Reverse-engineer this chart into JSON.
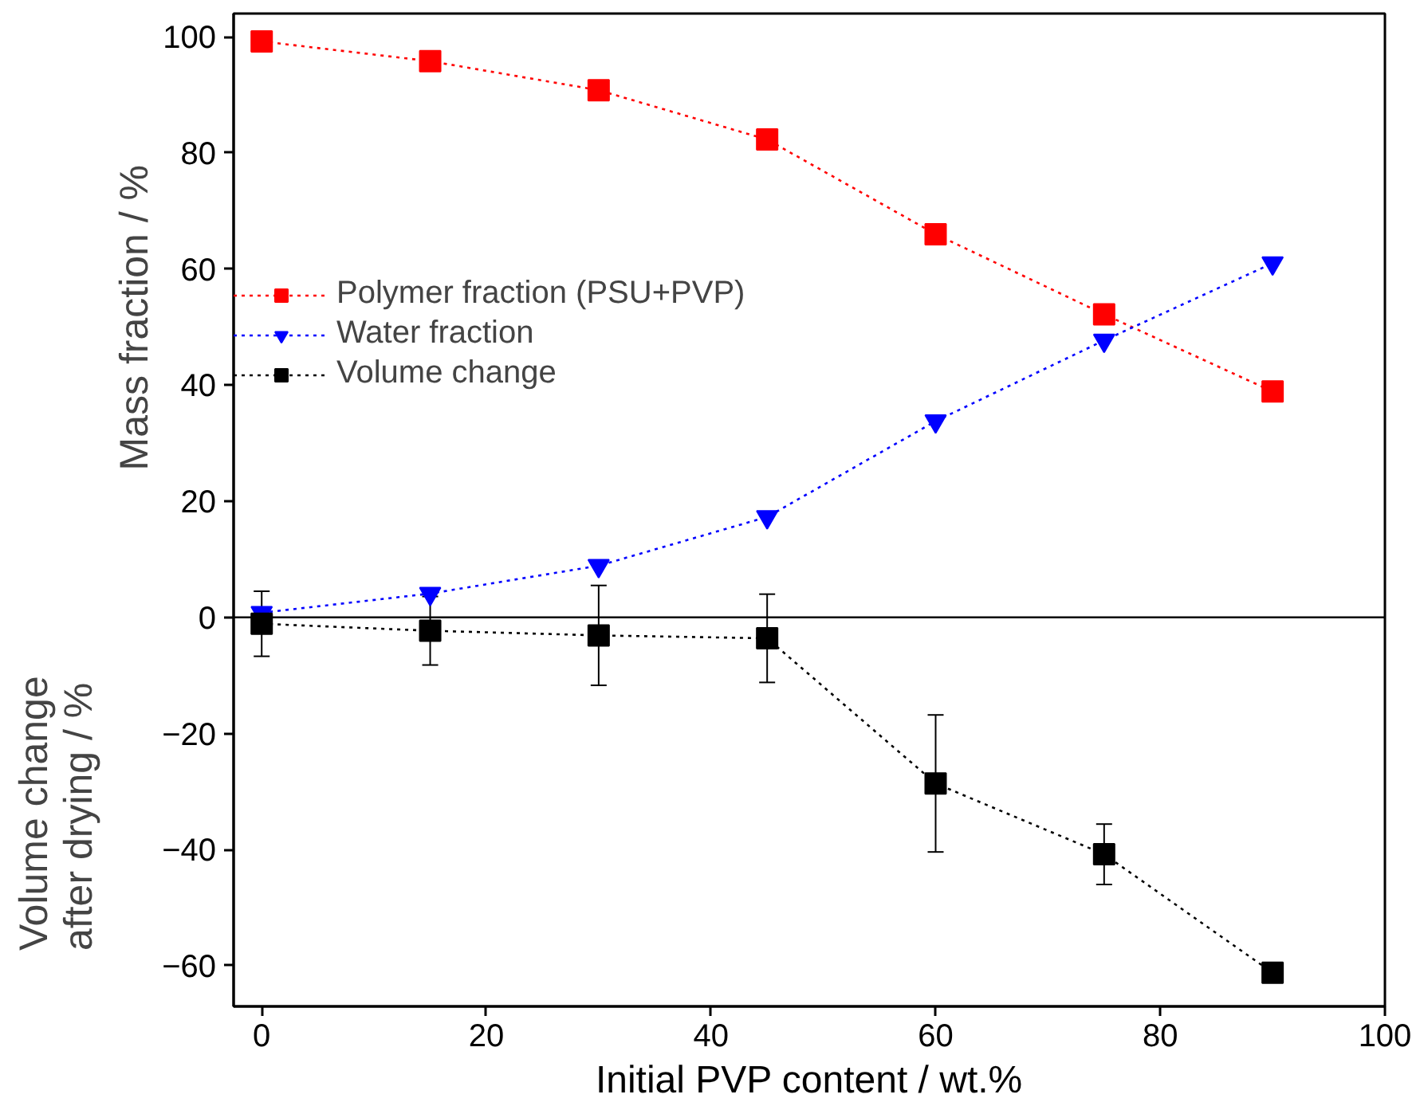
{
  "chart_data": {
    "type": "line",
    "xlabel": "Initial PVP content / wt.%",
    "ylabel": "Mass fraction / %",
    "annotations": [
      "Volume change\nafter drying / %"
    ],
    "x": [
      0,
      15,
      30,
      45,
      60,
      75,
      90
    ],
    "series": [
      {
        "name": "Polymer fraction (PSU+PVP)",
        "color": "#ff0000",
        "marker": "square",
        "values": [
          99.2,
          95.8,
          90.8,
          82.3,
          66,
          52.2,
          38.9
        ]
      },
      {
        "name": "Water fraction",
        "color": "#0000ff",
        "marker": "triangle",
        "values": [
          0.8,
          4.1,
          8.9,
          17.3,
          33.8,
          47.7,
          61
        ]
      },
      {
        "name": "Volume change",
        "color": "#000000",
        "marker": "square",
        "values": [
          -1.1,
          -2.3,
          -3.1,
          -3.6,
          -28.6,
          -40.8,
          -61.2
        ],
        "errors": [
          5.6,
          5.9,
          8.6,
          7.6,
          11.8,
          5.2,
          1
        ]
      }
    ],
    "xlim": [
      -2.5,
      100
    ],
    "ylim": [
      -67,
      104
    ],
    "xticks": [
      0,
      20,
      40,
      60,
      80,
      100
    ],
    "yticks": [
      -60,
      -40,
      -20,
      0,
      20,
      40,
      60,
      80,
      100
    ],
    "ref_lines": [
      {
        "axis": "y",
        "value": 0,
        "color": "#000000",
        "line_style": "solid"
      }
    ],
    "line_style": "dotted",
    "grid": false,
    "legend": "left"
  }
}
